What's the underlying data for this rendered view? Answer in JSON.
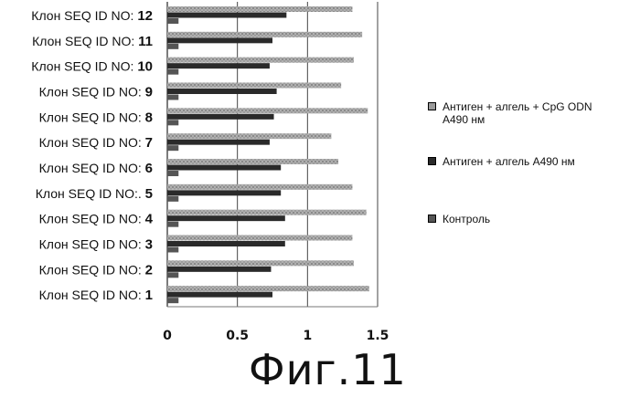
{
  "chart_data": {
    "type": "bar",
    "orientation": "horizontal",
    "categories": [
      {
        "prefix": "Клон SEQ ID NO:",
        "number": "12"
      },
      {
        "prefix": "Клон SEQ ID NO:",
        "number": "11"
      },
      {
        "prefix": "Клон SEQ ID NO:",
        "number": "10"
      },
      {
        "prefix": "Клон SEQ ID NO:",
        "number": "9"
      },
      {
        "prefix": "Клон SEQ ID NO:",
        "number": "8"
      },
      {
        "prefix": "Клон SEQ ID NO:",
        "number": "7"
      },
      {
        "prefix": "Клон SEQ ID NO:",
        "number": "6"
      },
      {
        "prefix": "Клон SEQ ID NO:.",
        "number": "5"
      },
      {
        "prefix": "Клон SEQ ID NO:",
        "number": "4"
      },
      {
        "prefix": "Клон SEQ ID NO:",
        "number": "3"
      },
      {
        "prefix": "Клон SEQ ID NO:",
        "number": "2"
      },
      {
        "prefix": "Клон SEQ ID NO:",
        "number": "1"
      }
    ],
    "series": [
      {
        "name": "Антиген + алгель + CpG ODN\nA490 нм",
        "color": "#9a9a9a",
        "values": [
          1.32,
          1.39,
          1.33,
          1.24,
          1.43,
          1.17,
          1.22,
          1.32,
          1.42,
          1.32,
          1.33,
          1.44
        ]
      },
      {
        "name": "Антиген + алгель A490 нм",
        "color": "#2a2a2a",
        "values": [
          0.85,
          0.75,
          0.73,
          0.78,
          0.76,
          0.73,
          0.81,
          0.81,
          0.84,
          0.84,
          0.74,
          0.75
        ]
      },
      {
        "name": "Контроль",
        "color": "#555555",
        "values": [
          0.08,
          0.08,
          0.08,
          0.08,
          0.08,
          0.08,
          0.08,
          0.08,
          0.08,
          0.08,
          0.08,
          0.08
        ]
      }
    ],
    "xlim": [
      0,
      1.5
    ],
    "xticks": [
      "0",
      "0.5",
      "1",
      "1.5"
    ],
    "xtick_values": [
      0,
      0.5,
      1,
      1.5
    ],
    "grid": true,
    "legend_position": "right"
  },
  "caption": "Фиг.11"
}
